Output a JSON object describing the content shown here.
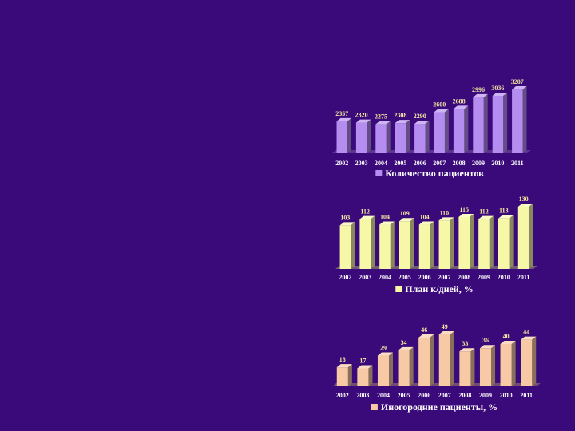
{
  "colors": {
    "background": "#3a0a7a",
    "value_label": "#f2e6a0",
    "tick_label": "#ffffff"
  },
  "chart_data": [
    {
      "type": "bar",
      "categories": [
        "2002",
        "2003",
        "2004",
        "2005",
        "2006",
        "2007",
        "2008",
        "2009",
        "2010",
        "2011"
      ],
      "series": [
        {
          "name": "Количество пациентов",
          "values": [
            2357,
            2320,
            2275,
            2308,
            2290,
            2600,
            2688,
            2996,
            3036,
            3207
          ],
          "color": "#b58cf0"
        }
      ],
      "data_labels": true,
      "legend": "bottom"
    },
    {
      "type": "bar",
      "categories": [
        "2002",
        "2003",
        "2004",
        "2005",
        "2006",
        "2007",
        "2008",
        "2009",
        "2010",
        "2011"
      ],
      "series": [
        {
          "name": "План к/дней, %",
          "values": [
            103,
            112,
            104,
            109,
            104,
            110,
            115,
            112,
            113,
            130
          ],
          "color": "#f7f7a8"
        }
      ],
      "data_labels": true,
      "legend": "bottom"
    },
    {
      "type": "bar",
      "categories": [
        "2002",
        "2003",
        "2004",
        "2005",
        "2006",
        "2007",
        "2008",
        "2009",
        "2010",
        "2011"
      ],
      "series": [
        {
          "name": "Иногородние пациенты, %",
          "values": [
            18,
            17,
            29,
            34,
            46,
            49,
            33,
            36,
            40,
            44
          ],
          "color": "#f7c9a4"
        }
      ],
      "data_labels": true,
      "legend": "bottom"
    }
  ]
}
